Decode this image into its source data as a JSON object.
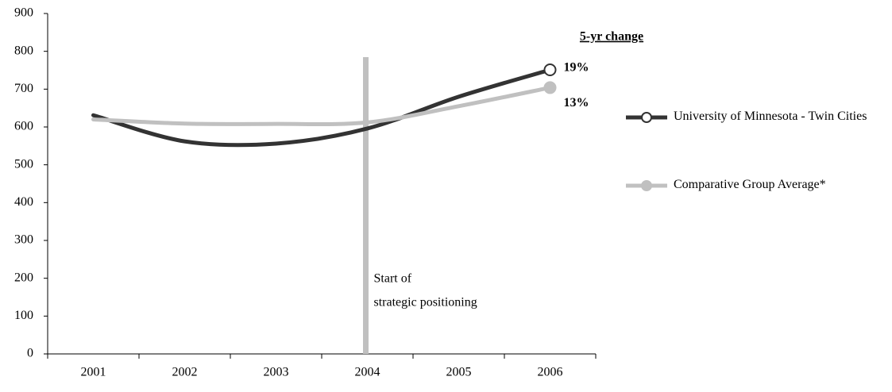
{
  "chart_data": {
    "type": "line",
    "categories": [
      "2001",
      "2002",
      "2003",
      "2004",
      "2005",
      "2006"
    ],
    "series": [
      {
        "name": "University of Minnesota - Twin Cities",
        "color": "#333333",
        "marker": "open",
        "change_label": "19%",
        "values": [
          631,
          562,
          556,
          596,
          680,
          751
        ]
      },
      {
        "name": "Comparative Group Average*",
        "color": "#c0c0c0",
        "marker": "filled",
        "change_label": "13%",
        "values": [
          620,
          609,
          608,
          612,
          655,
          704
        ]
      }
    ],
    "change_title": "5-yr change",
    "annotation": {
      "lines": [
        "Start of",
        "strategic positioning"
      ],
      "x": "2004"
    },
    "ylim": [
      0,
      900
    ],
    "yticks": [
      0,
      100,
      200,
      300,
      400,
      500,
      600,
      700,
      800,
      900
    ],
    "grid": false,
    "legend": "right"
  }
}
